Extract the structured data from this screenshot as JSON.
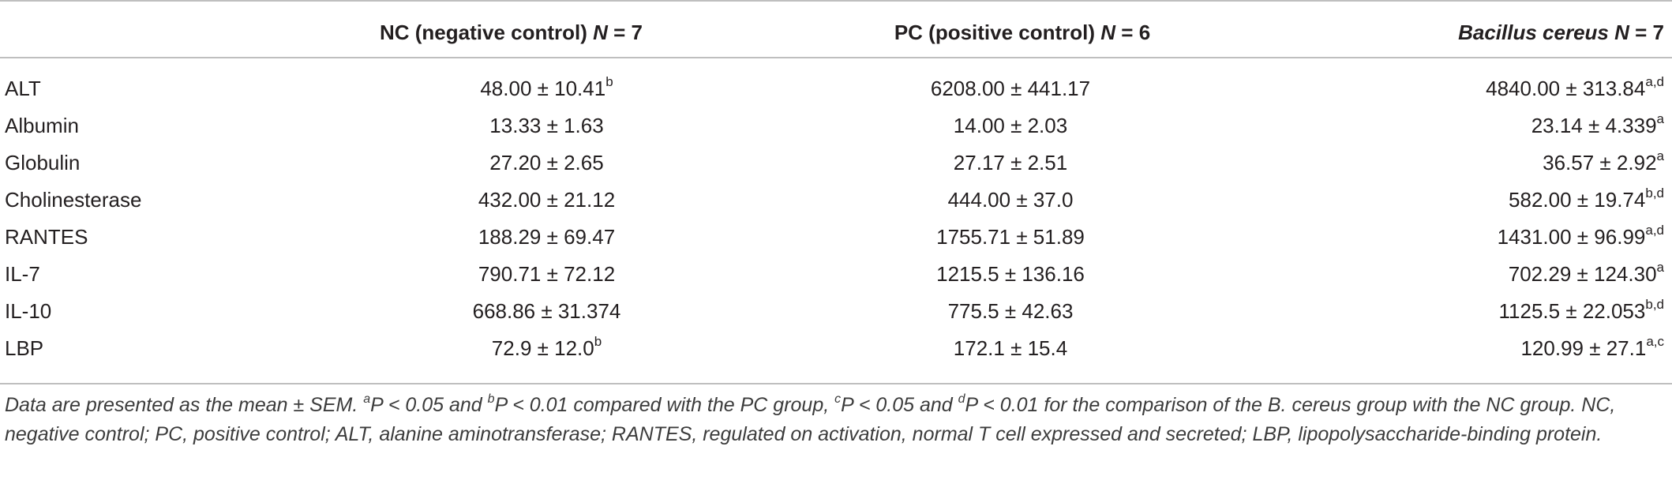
{
  "table": {
    "headers": [
      "",
      {
        "name": "NC (negative control)",
        "n_label": "N",
        "n_eq": " = 7"
      },
      {
        "name": "PC (positive control)",
        "n_label": "N",
        "n_eq": " = 6"
      },
      {
        "name": "Bacillus cereus",
        "n_label": "N",
        "n_eq": " = 7"
      }
    ],
    "rows": [
      {
        "label": "ALT",
        "nc": "48.00 ± 10.41",
        "nc_sup": "b",
        "pc": "6208.00 ± 441.17",
        "pc_sup": "",
        "bc": "4840.00 ± 313.84",
        "bc_sup": "a,d"
      },
      {
        "label": "Albumin",
        "nc": "13.33 ± 1.63",
        "nc_sup": "",
        "pc": "14.00 ± 2.03",
        "pc_sup": "",
        "bc": "23.14 ± 4.339",
        "bc_sup": "a"
      },
      {
        "label": "Globulin",
        "nc": "27.20 ± 2.65",
        "nc_sup": "",
        "pc": "27.17 ± 2.51",
        "pc_sup": "",
        "bc": "36.57 ± 2.92",
        "bc_sup": "a"
      },
      {
        "label": "Cholinesterase",
        "nc": "432.00 ± 21.12",
        "nc_sup": "",
        "pc": "444.00 ± 37.0",
        "pc_sup": "",
        "bc": "582.00 ± 19.74",
        "bc_sup": "b,d"
      },
      {
        "label": "RANTES",
        "nc": "188.29 ± 69.47",
        "nc_sup": "",
        "pc": "1755.71 ± 51.89",
        "pc_sup": "",
        "bc": "1431.00 ± 96.99",
        "bc_sup": "a,d"
      },
      {
        "label": "IL-7",
        "nc": "790.71 ± 72.12",
        "nc_sup": "",
        "pc": "1215.5 ± 136.16",
        "pc_sup": "",
        "bc": "702.29 ± 124.30",
        "bc_sup": "a"
      },
      {
        "label": "IL-10",
        "nc": "668.86 ± 31.374",
        "nc_sup": "",
        "pc": "775.5 ± 42.63",
        "pc_sup": "",
        "bc": "1125.5 ± 22.053",
        "bc_sup": "b,d"
      },
      {
        "label": "LBP",
        "nc": "72.9 ± 12.0",
        "nc_sup": "b",
        "pc": "172.1 ± 15.4",
        "pc_sup": "",
        "bc": "120.99 ± 27.1",
        "bc_sup": "a,c"
      }
    ]
  },
  "footnote": {
    "p1": "Data are presented as the mean ± SEM. ",
    "s_a": "a",
    "p2": "P < 0.05 and ",
    "s_b": "b",
    "p3": "P < 0.01 compared with the PC group, ",
    "s_c": "c",
    "p4": "P < 0.05 and ",
    "s_d": "d",
    "p5": "P < 0.01 for the comparison of the B. cereus group with the NC group. NC, negative control; PC, positive control; ALT, alanine aminotransferase; RANTES, regulated on activation, normal T cell expressed and secreted; LBP, lipopolysaccharide-binding protein."
  }
}
